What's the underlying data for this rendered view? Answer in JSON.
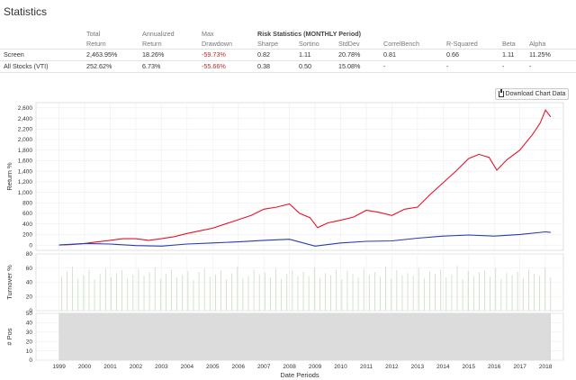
{
  "page": {
    "title": "Statistics"
  },
  "stats": {
    "risk_header": "Risk Statistics (MONTHLY Period)",
    "headers_top": [
      "",
      "Total",
      "Annualized",
      "Max",
      "Sharpe",
      "Sortino",
      "StdDev",
      "CorrelBench",
      "R-Squared",
      "Beta",
      "Alpha"
    ],
    "headers_bottom": [
      "",
      "Return",
      "Return",
      "Drawdown"
    ],
    "rows": [
      {
        "name": "Screen",
        "total": "2,463.95%",
        "annualized": "18.26%",
        "maxdd": "-59.73%",
        "sharpe": "0.82",
        "sortino": "1.11",
        "stddev": "20.78%",
        "correl": "0.81",
        "rsq": "0.66",
        "beta": "1.11",
        "alpha": "11.25%"
      },
      {
        "name": "All Stocks (VTI)",
        "total": "252.62%",
        "annualized": "6.73%",
        "maxdd": "-55.66%",
        "sharpe": "0.38",
        "sortino": "0.50",
        "stddev": "15.08%",
        "correl": "-",
        "rsq": "-",
        "beta": "-",
        "alpha": "-"
      }
    ]
  },
  "download_button": "Download Chart Data",
  "chart_data": [
    {
      "type": "line",
      "ylabel": "Return %",
      "ylim": [
        -100,
        2700
      ],
      "yticks": [
        0,
        200,
        400,
        600,
        800,
        1000,
        1200,
        1400,
        1600,
        1800,
        2000,
        2200,
        2400,
        2600
      ],
      "ytick_labels": [
        "0",
        "200",
        "400",
        "600",
        "800",
        "1,000",
        "1,200",
        "1,400",
        "1,600",
        "1,800",
        "2,000",
        "2,200",
        "2,400",
        "2,600"
      ],
      "series": [
        {
          "color": "#e8112d",
          "x": [
            1999.0,
            1999.5,
            2000.0,
            2000.5,
            2001.0,
            2001.5,
            2002.0,
            2002.5,
            2003.0,
            2003.5,
            2004.0,
            2004.5,
            2005.0,
            2005.5,
            2006.0,
            2006.5,
            2007.0,
            2007.5,
            2008.0,
            2008.4,
            2008.8,
            2009.1,
            2009.5,
            2010.0,
            2010.5,
            2011.0,
            2011.5,
            2012.0,
            2012.5,
            2013.0,
            2013.5,
            2014.0,
            2014.5,
            2015.0,
            2015.4,
            2015.8,
            2016.1,
            2016.5,
            2017.0,
            2017.5,
            2017.8,
            2018.0,
            2018.2
          ],
          "values": [
            0,
            10,
            30,
            60,
            90,
            120,
            120,
            90,
            120,
            160,
            220,
            270,
            320,
            400,
            480,
            560,
            680,
            720,
            780,
            600,
            520,
            330,
            420,
            470,
            530,
            660,
            620,
            560,
            680,
            720,
            960,
            1180,
            1400,
            1640,
            1720,
            1660,
            1420,
            1620,
            1800,
            2100,
            2320,
            2560,
            2430
          ]
        },
        {
          "color": "#2a3cad",
          "x": [
            1999.0,
            2000.0,
            2001.0,
            2002.0,
            2003.0,
            2004.0,
            2005.0,
            2006.0,
            2007.0,
            2008.0,
            2009.0,
            2010.0,
            2011.0,
            2012.0,
            2013.0,
            2014.0,
            2015.0,
            2016.0,
            2017.0,
            2018.0,
            2018.2
          ],
          "values": [
            0,
            30,
            20,
            -10,
            -20,
            20,
            40,
            60,
            90,
            110,
            -20,
            40,
            70,
            80,
            130,
            170,
            190,
            170,
            200,
            250,
            240
          ]
        }
      ]
    },
    {
      "type": "bar",
      "ylabel": "Turnover %",
      "ylim": [
        0,
        80
      ],
      "yticks": [
        0,
        20,
        40,
        60,
        80
      ],
      "ytick_labels": [
        "0",
        "20",
        "40",
        "60",
        "80"
      ],
      "values": [
        48,
        55,
        62,
        45,
        50,
        58,
        44,
        52,
        60,
        47,
        53,
        57,
        46,
        51,
        59,
        49,
        54,
        61,
        45,
        52,
        58,
        47,
        50,
        56,
        43,
        55,
        60,
        48,
        51,
        57,
        44,
        53,
        62,
        46,
        49,
        58,
        51,
        54,
        47,
        60,
        45,
        52,
        57,
        49,
        55,
        48,
        61,
        46,
        53,
        50,
        58,
        44,
        56,
        52,
        47,
        59,
        51,
        54,
        48,
        62,
        45,
        57,
        50,
        53,
        49,
        60,
        46,
        55,
        52,
        58,
        47,
        51,
        63,
        44,
        56,
        49,
        54,
        57,
        48,
        60,
        45,
        53,
        50,
        55,
        46,
        58,
        52,
        49,
        61,
        47
      ]
    },
    {
      "type": "bar",
      "ylabel": "# Pos",
      "ylim": [
        0,
        50
      ],
      "yticks": [
        0,
        10,
        20,
        30,
        40,
        50
      ],
      "ytick_labels": [
        "0",
        "10",
        "20",
        "30",
        "40",
        "50"
      ],
      "values": [
        50
      ],
      "xlabel": "Date Periods",
      "xticks": [
        "1999",
        "2000",
        "2001",
        "2002",
        "2003",
        "2004",
        "2005",
        "2006",
        "2007",
        "2008",
        "2009",
        "2010",
        "2011",
        "2012",
        "2013",
        "2014",
        "2015",
        "2016",
        "2017",
        "2018"
      ]
    }
  ]
}
